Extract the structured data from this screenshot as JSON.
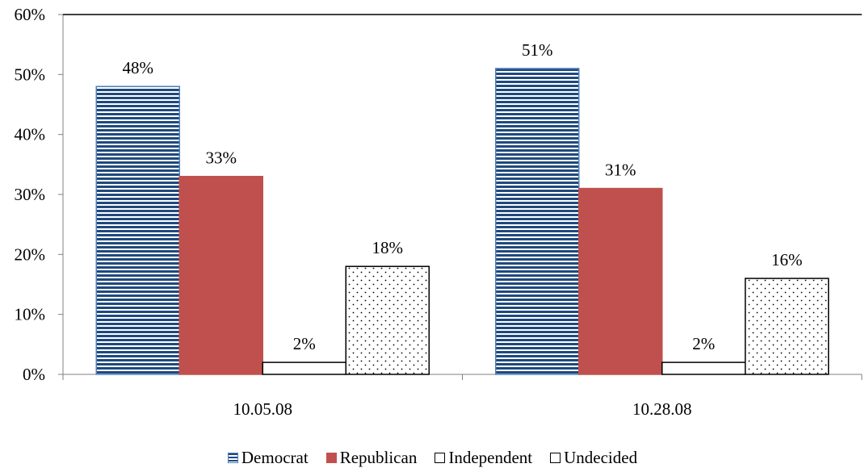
{
  "chart_data": {
    "type": "bar",
    "categories": [
      "10.05.08",
      "10.28.08"
    ],
    "series": [
      {
        "name": "Democrat",
        "values": [
          48,
          51
        ],
        "labels": [
          "48%",
          "51%"
        ],
        "color": "#1F497D",
        "pattern": "horizontal-stripes"
      },
      {
        "name": "Republican",
        "values": [
          33,
          31
        ],
        "labels": [
          "33%",
          "31%"
        ],
        "color": "#C0504D",
        "pattern": "solid"
      },
      {
        "name": "Independent",
        "values": [
          2,
          2
        ],
        "labels": [
          "2%",
          "2%"
        ],
        "color": "#FFFFFF",
        "pattern": "none"
      },
      {
        "name": "Undecided",
        "values": [
          18,
          16
        ],
        "labels": [
          "18%",
          "16%"
        ],
        "color": "#FFFFFF",
        "pattern": "dotted"
      }
    ],
    "y_ticks": [
      "0%",
      "10%",
      "20%",
      "30%",
      "40%",
      "50%",
      "60%"
    ],
    "ylim": [
      0,
      60
    ],
    "title": "",
    "xlabel": "",
    "ylabel": "",
    "grid": false,
    "legend_position": "bottom"
  }
}
